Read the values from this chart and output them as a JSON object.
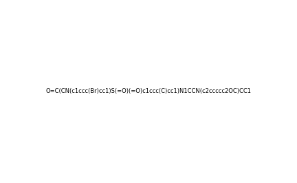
{
  "smiles": "O=C(CN(c1ccc(Br)cc1)S(=O)(=O)c1ccc(C)cc1)N1CCN(c2ccccc2OC)CC1",
  "title": "",
  "background_color": "#ffffff",
  "line_color": "#000000",
  "figsize": [
    4.32,
    2.66
  ],
  "dpi": 100
}
